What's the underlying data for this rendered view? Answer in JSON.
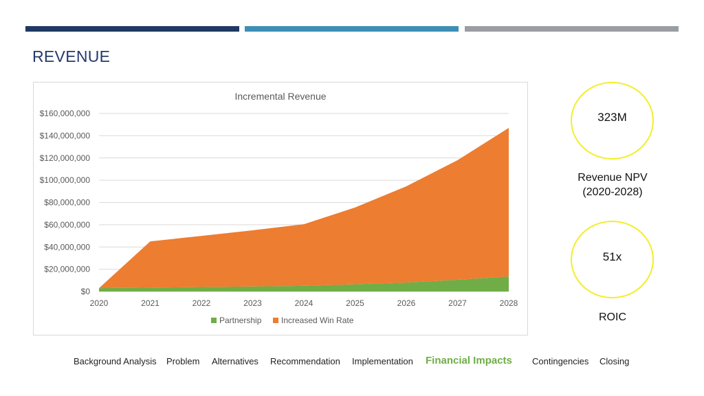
{
  "slide": {
    "title": "REVENUE",
    "accent_colors": [
      "#1f3864",
      "#3d8fb5",
      "#9a9da1"
    ]
  },
  "metrics": {
    "npv_value": "323M",
    "npv_label_line1": "Revenue NPV",
    "npv_label_line2": "(2020-2028)",
    "roic_value": "51x",
    "roic_label": "ROIC",
    "circle_color": "#f2ee2a"
  },
  "nav": {
    "items": [
      "Background Analysis",
      "Problem",
      "Alternatives",
      "Recommendation",
      "Implementation",
      "Financial Impacts",
      "Contingencies",
      "Closing"
    ],
    "active": "Financial Impacts"
  },
  "chart_data": {
    "type": "area",
    "stacked": true,
    "title": "Incremental Revenue",
    "x": [
      "2020",
      "2021",
      "2022",
      "2023",
      "2024",
      "2025",
      "2026",
      "2027",
      "2028"
    ],
    "series": [
      {
        "name": "Partnership",
        "color": "#70ad47",
        "values": [
          3000000,
          3500000,
          4000000,
          4500000,
          5000000,
          6500000,
          8000000,
          10500000,
          13500000
        ]
      },
      {
        "name": "Increased Win Rate",
        "color": "#ed7d31",
        "values": [
          0,
          41500000,
          46000000,
          50500000,
          55500000,
          69000000,
          86500000,
          107500000,
          133500000
        ]
      }
    ],
    "y_ticks": [
      "$0",
      "$20,000,000",
      "$40,000,000",
      "$60,000,000",
      "$80,000,000",
      "$100,000,000",
      "$120,000,000",
      "$140,000,000",
      "$160,000,000"
    ],
    "ylim": [
      0,
      160000000
    ],
    "grid": true,
    "legend": "bottom"
  }
}
